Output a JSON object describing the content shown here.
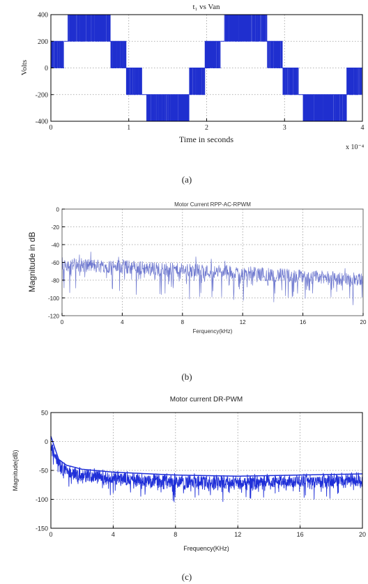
{
  "chart_data": [
    {
      "type": "line",
      "title": "t₁ vs Van",
      "xlabel": "Time in seconds",
      "ylabel": "Volts",
      "x_multiplier": "x 10⁻⁴",
      "xlim": [
        0,
        4
      ],
      "ylim": [
        -400,
        400
      ],
      "xticks": [
        0,
        1,
        2,
        3,
        4
      ],
      "yticks": [
        400,
        200,
        0,
        -200,
        -400
      ],
      "grid": true,
      "caption": "(a)",
      "line_color": "#1f2fcf",
      "series": [
        {
          "description": "phase voltage envelope (PWM switching between adjacent levels)",
          "segments": [
            {
              "x": [
                0.0,
                0.02
              ],
              "levels": [
                0,
                200
              ]
            },
            {
              "x": [
                0.02,
                0.17
              ],
              "levels": [
                0,
                200
              ]
            },
            {
              "x": [
                0.17,
                0.22
              ],
              "levels": [
                200,
                200
              ]
            },
            {
              "x": [
                0.22,
                0.77
              ],
              "levels": [
                200,
                400
              ]
            },
            {
              "x": [
                0.77,
                0.97
              ],
              "levels": [
                0,
                200
              ]
            },
            {
              "x": [
                0.97,
                1.17
              ],
              "levels": [
                -200,
                0
              ]
            },
            {
              "x": [
                1.17,
                1.23
              ],
              "levels": [
                -200,
                -200
              ]
            },
            {
              "x": [
                1.23,
                1.78
              ],
              "levels": [
                -400,
                -200
              ]
            },
            {
              "x": [
                1.78,
                1.98
              ],
              "levels": [
                -200,
                0
              ]
            },
            {
              "x": [
                1.98,
                2.18
              ],
              "levels": [
                0,
                200
              ]
            },
            {
              "x": [
                2.18,
                2.23
              ],
              "levels": [
                200,
                200
              ]
            },
            {
              "x": [
                2.23,
                2.78
              ],
              "levels": [
                200,
                400
              ]
            },
            {
              "x": [
                2.78,
                2.98
              ],
              "levels": [
                0,
                200
              ]
            },
            {
              "x": [
                2.98,
                3.18
              ],
              "levels": [
                -200,
                0
              ]
            },
            {
              "x": [
                3.18,
                3.24
              ],
              "levels": [
                -200,
                -200
              ]
            },
            {
              "x": [
                3.24,
                3.8
              ],
              "levels": [
                -400,
                -200
              ]
            },
            {
              "x": [
                3.8,
                4.0
              ],
              "levels": [
                -200,
                0
              ]
            }
          ]
        }
      ]
    },
    {
      "type": "line",
      "title": "Motor Current RPP-AC-RPWM",
      "xlabel": "Ferquency(kHz)",
      "ylabel": "Magnitude in dB",
      "xlim": [
        0,
        20
      ],
      "ylim": [
        -120,
        0
      ],
      "xticks": [
        0,
        4,
        8,
        12,
        16,
        20
      ],
      "yticks": [
        0,
        -20,
        -40,
        -60,
        -80,
        -100,
        -120
      ],
      "grid": true,
      "caption": "(b)",
      "line_color": "#6f79cf",
      "series": [
        {
          "description": "noisy spectrum, trend from about -60 dB at 0 kHz to about -80 dB at 20 kHz",
          "trend_x": [
            0,
            4,
            8,
            12,
            16,
            20
          ],
          "trend_y": [
            -62,
            -65,
            -69,
            -72,
            -76,
            -80
          ],
          "noise_range_db": [
            -105,
            -48
          ]
        }
      ]
    },
    {
      "type": "line",
      "title": "Motor current DR-PWM",
      "xlabel": "Frequency(KHz)",
      "ylabel": "Magnitude(dB)",
      "xlim": [
        0,
        20
      ],
      "ylim": [
        -150,
        50
      ],
      "xticks": [
        0,
        4,
        8,
        12,
        16,
        20
      ],
      "yticks": [
        50,
        0,
        -50,
        -100,
        -150
      ],
      "grid": true,
      "caption": "(c)",
      "line_color": "#1f2fd8",
      "series": [
        {
          "description": "spectrum peaking near 5 dB at 0 kHz, decaying to about -60 dB by 20 kHz",
          "trend_x": [
            0,
            0.5,
            1,
            2,
            4,
            8,
            12,
            16,
            20
          ],
          "trend_y": [
            5,
            -35,
            -45,
            -52,
            -57,
            -62,
            -64,
            -62,
            -60
          ],
          "noise_range_db": [
            -110,
            -35
          ]
        }
      ]
    }
  ]
}
